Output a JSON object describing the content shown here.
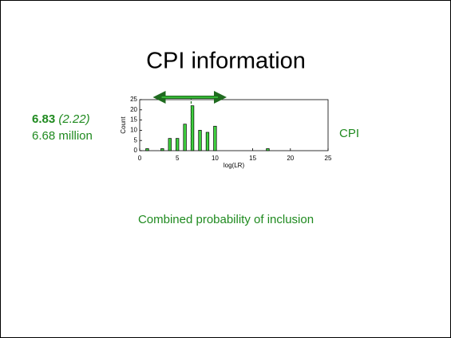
{
  "slide": {
    "title": "CPI information",
    "sd_label": "(2.22)",
    "count_label": "6.68 million",
    "side_label": "CPI",
    "caption": "Combined probability of inclusion"
  },
  "chart_data": {
    "type": "bar",
    "x": [
      1,
      3,
      4,
      5,
      6,
      7,
      8,
      9,
      10,
      17
    ],
    "values": [
      1,
      1,
      6,
      6,
      13,
      22,
      10,
      9,
      12,
      1
    ],
    "color": "#3fd23f",
    "xlabel": "log(LR)",
    "ylabel": "Count",
    "xlim": [
      0,
      25
    ],
    "xticks": [
      0,
      5,
      10,
      15,
      20,
      25
    ],
    "ylim": [
      0,
      25
    ],
    "yticks": [
      0,
      5,
      10,
      15,
      20,
      25
    ],
    "mean": 6.83,
    "interval": [
      2.6,
      10.7
    ]
  }
}
